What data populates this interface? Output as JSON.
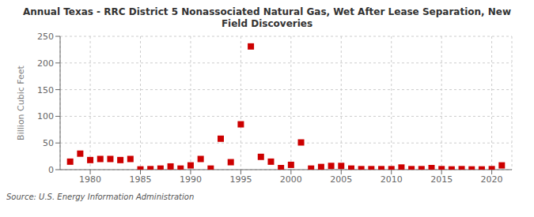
{
  "chart_data": {
    "type": "scatter",
    "title": "Annual Texas - RRC District 5 Nonassociated Natural Gas, Wet After Lease Separation, New\nField Discoveries",
    "ylabel": "Billion Cubic Feet",
    "annotations": [
      "Source: U.S. Energy Information Administration"
    ],
    "x": [
      1978,
      1979,
      1980,
      1981,
      1982,
      1983,
      1984,
      1985,
      1986,
      1987,
      1988,
      1989,
      1990,
      1991,
      1992,
      1993,
      1994,
      1995,
      1996,
      1997,
      1998,
      1999,
      2000,
      2001,
      2002,
      2003,
      2004,
      2005,
      2006,
      2007,
      2008,
      2009,
      2010,
      2011,
      2012,
      2013,
      2014,
      2015,
      2016,
      2017,
      2018,
      2019,
      2020,
      2021
    ],
    "values": [
      15,
      30,
      18,
      20,
      20,
      18,
      20,
      0.5,
      1,
      2,
      6,
      2,
      8,
      20,
      2,
      58,
      14,
      85,
      231,
      24,
      15,
      3,
      9,
      51,
      2,
      5,
      7,
      7,
      2,
      1,
      1,
      1,
      1,
      4,
      1,
      1,
      3,
      1,
      0.5,
      1,
      0.5,
      0.5,
      1,
      8
    ],
    "color": "#cc0000",
    "marker": "square",
    "xlim": [
      1977,
      2022
    ],
    "xticks": [
      1980,
      1985,
      1990,
      1995,
      2000,
      2005,
      2010,
      2015,
      2020
    ],
    "ylim": [
      0,
      250
    ],
    "yticks": [
      0,
      50,
      100,
      150,
      200,
      250
    ],
    "grid": true
  }
}
